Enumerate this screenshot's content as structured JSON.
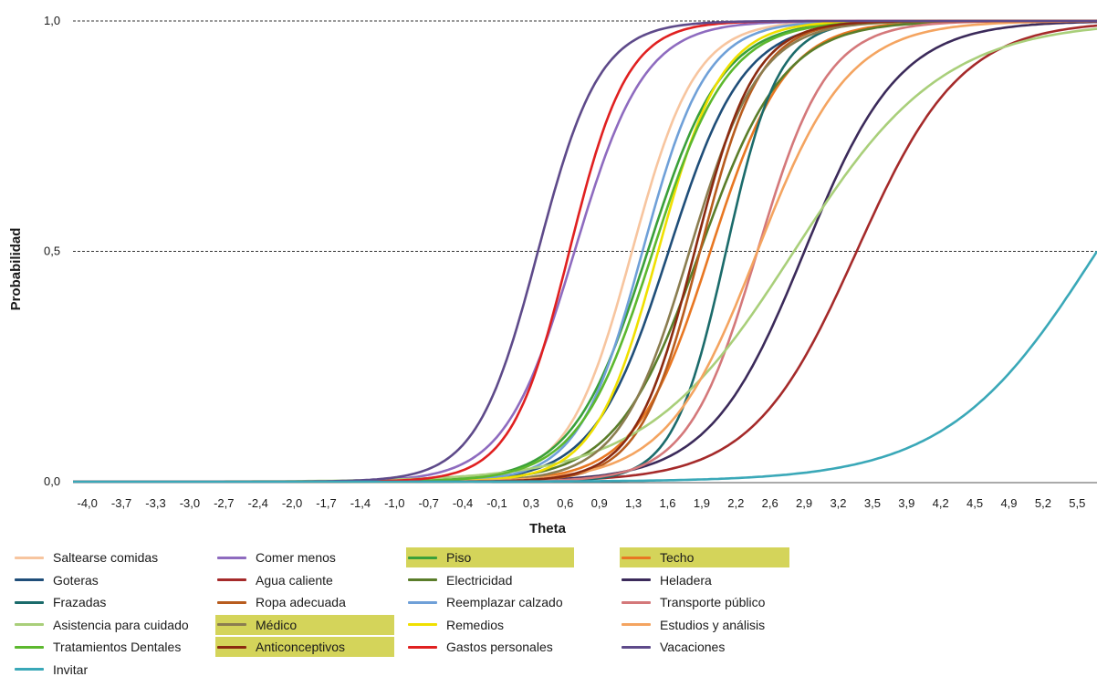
{
  "chart_data": {
    "type": "line",
    "title": "",
    "xlabel": "Theta",
    "ylabel": "Probabilidad",
    "xlim": [
      -4.0,
      5.8
    ],
    "ylim": [
      0.0,
      1.0
    ],
    "x_tick_labels": [
      "-4,0",
      "-3,7",
      "-3,3",
      "-3,0",
      "-2,7",
      "-2,4",
      "-2,0",
      "-1,7",
      "-1,4",
      "-1,0",
      "-0,7",
      "-0,4",
      "-0,1",
      "0,3",
      "0,6",
      "0,9",
      "1,3",
      "1,6",
      "1,9",
      "2,2",
      "2,6",
      "2,9",
      "3,2",
      "3,5",
      "3,9",
      "4,2",
      "4,5",
      "4,9",
      "5,2",
      "5,5"
    ],
    "y_tick_labels": [
      "0,0",
      "0,5",
      "1,0"
    ],
    "y_ticks": [
      0.0,
      0.5,
      1.0
    ],
    "grid": "horizontal dashed at 0,5 and 1,0",
    "legend_position": "bottom",
    "curve_model": "logistic; y = 1/(1+exp(-a*(x-b))); b = theta at probability 0,5",
    "series": [
      {
        "name": "Saltearse comidas",
        "color": "#f7c59f",
        "a": 3.3,
        "b": 1.35,
        "highlight": false
      },
      {
        "name": "Comer menos",
        "color": "#8e6bbf",
        "a": 3.0,
        "b": 0.8,
        "highlight": false
      },
      {
        "name": "Piso",
        "color": "#3aa03a",
        "a": 2.8,
        "b": 1.5,
        "highlight": true
      },
      {
        "name": "Techo",
        "color": "#e87722",
        "a": 2.8,
        "b": 2.1,
        "highlight": true
      },
      {
        "name": "Goteras",
        "color": "#1f4e79",
        "a": 2.8,
        "b": 1.7,
        "highlight": false
      },
      {
        "name": "Agua caliente",
        "color": "#a52a2a",
        "a": 2.0,
        "b": 3.5,
        "highlight": false
      },
      {
        "name": "Electricidad",
        "color": "#5a7d2a",
        "a": 2.5,
        "b": 2.0,
        "highlight": false
      },
      {
        "name": "Heladera",
        "color": "#3b2a5a",
        "a": 2.2,
        "b": 3.0,
        "highlight": false
      },
      {
        "name": "Frazadas",
        "color": "#1b6b6b",
        "a": 4.0,
        "b": 2.25,
        "highlight": false
      },
      {
        "name": "Ropa adecuada",
        "color": "#b85c1e",
        "a": 3.5,
        "b": 2.0,
        "highlight": false
      },
      {
        "name": "Reemplazar calzado",
        "color": "#6fa0d8",
        "a": 3.3,
        "b": 1.45,
        "highlight": false
      },
      {
        "name": "Transporte público",
        "color": "#d4787a",
        "a": 3.0,
        "b": 2.55,
        "highlight": false
      },
      {
        "name": "Asistencia para cuidado",
        "color": "#a9cf7a",
        "a": 1.4,
        "b": 2.9,
        "highlight": false
      },
      {
        "name": "Médico",
        "color": "#8b7d50",
        "a": 3.0,
        "b": 1.9,
        "highlight": true
      },
      {
        "name": "Remedios",
        "color": "#f0e000",
        "a": 3.3,
        "b": 1.6,
        "highlight": false
      },
      {
        "name": "Estudios y análisis",
        "color": "#f4a460",
        "a": 2.3,
        "b": 2.55,
        "highlight": false
      },
      {
        "name": "Tratamientos Dentales",
        "color": "#5cb82e",
        "a": 2.8,
        "b": 1.55,
        "highlight": false
      },
      {
        "name": "Anticonceptivos",
        "color": "#8b2a10",
        "a": 3.5,
        "b": 1.95,
        "highlight": true
      },
      {
        "name": "Gastos personales",
        "color": "#e02020",
        "a": 3.6,
        "b": 0.75,
        "highlight": false
      },
      {
        "name": "Vacaciones",
        "color": "#5e4a8a",
        "a": 3.4,
        "b": 0.45,
        "highlight": false
      },
      {
        "name": "Invitar",
        "color": "#3aa8b8",
        "a": 1.4,
        "b": 5.8,
        "highlight": false
      }
    ]
  }
}
